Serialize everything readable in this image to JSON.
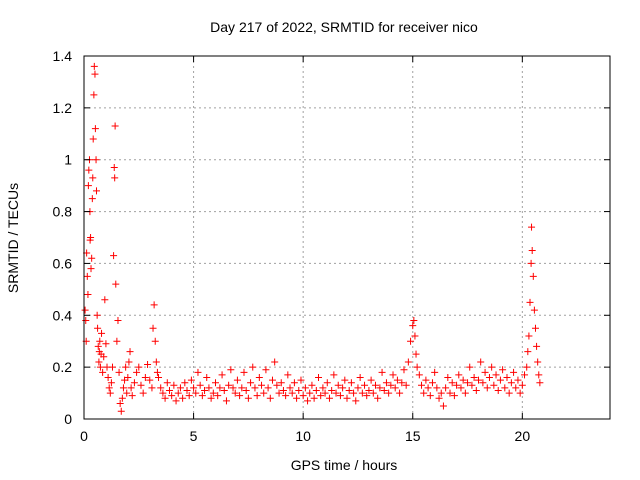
{
  "chart_data": {
    "type": "scatter",
    "title": "Day 217 of 2022, SRMTID for receiver nico",
    "xlabel": "GPS time / hours",
    "ylabel": "SRMTID / TECUs",
    "xlim": [
      0,
      24
    ],
    "ylim": [
      0,
      1.4
    ],
    "xticks": [
      0,
      5,
      10,
      15,
      20
    ],
    "yticks": [
      0,
      0.2,
      0.4,
      0.6,
      0.8,
      1,
      1.2,
      1.4
    ],
    "xtick_labels": [
      "0",
      "5",
      "10",
      "15",
      "20"
    ],
    "ytick_labels": [
      "0",
      "0.2",
      "0.4",
      "0.6",
      "0.8",
      "1",
      "1.2",
      "1.4"
    ],
    "grid": true,
    "marker": "+",
    "color": "#ff0000",
    "series": [
      {
        "name": "SRMTID",
        "points": [
          [
            0.05,
            0.42
          ],
          [
            0.08,
            0.38
          ],
          [
            0.1,
            0.3
          ],
          [
            0.12,
            0.64
          ],
          [
            0.15,
            0.55
          ],
          [
            0.18,
            0.48
          ],
          [
            0.2,
            0.9
          ],
          [
            0.22,
            0.96
          ],
          [
            0.25,
            1.0
          ],
          [
            0.27,
            0.8
          ],
          [
            0.28,
            0.69
          ],
          [
            0.3,
            0.7
          ],
          [
            0.32,
            0.58
          ],
          [
            0.35,
            0.62
          ],
          [
            0.38,
            0.85
          ],
          [
            0.4,
            0.93
          ],
          [
            0.42,
            1.08
          ],
          [
            0.45,
            1.25
          ],
          [
            0.47,
            1.36
          ],
          [
            0.5,
            1.33
          ],
          [
            0.52,
            1.12
          ],
          [
            0.55,
            1.0
          ],
          [
            0.57,
            0.88
          ],
          [
            0.6,
            0.4
          ],
          [
            0.62,
            0.35
          ],
          [
            0.65,
            0.28
          ],
          [
            0.68,
            0.22
          ],
          [
            0.7,
            0.26
          ],
          [
            0.72,
            0.3
          ],
          [
            0.75,
            0.2
          ],
          [
            0.78,
            0.25
          ],
          [
            0.8,
            0.33
          ],
          [
            0.85,
            0.18
          ],
          [
            0.9,
            0.24
          ],
          [
            0.95,
            0.46
          ],
          [
            1.0,
            0.29
          ],
          [
            1.05,
            0.2
          ],
          [
            1.1,
            0.16
          ],
          [
            1.15,
            0.12
          ],
          [
            1.2,
            0.1
          ],
          [
            1.25,
            0.14
          ],
          [
            1.3,
            0.2
          ],
          [
            1.35,
            0.63
          ],
          [
            1.38,
            0.97
          ],
          [
            1.4,
            0.93
          ],
          [
            1.42,
            1.13
          ],
          [
            1.45,
            0.52
          ],
          [
            1.5,
            0.3
          ],
          [
            1.55,
            0.38
          ],
          [
            1.6,
            0.18
          ],
          [
            1.65,
            0.06
          ],
          [
            1.7,
            0.03
          ],
          [
            1.75,
            0.08
          ],
          [
            1.8,
            0.12
          ],
          [
            1.85,
            0.15
          ],
          [
            1.9,
            0.2
          ],
          [
            1.95,
            0.1
          ],
          [
            2.0,
            0.16
          ],
          [
            2.05,
            0.22
          ],
          [
            2.1,
            0.26
          ],
          [
            2.15,
            0.12
          ],
          [
            2.2,
            0.09
          ],
          [
            2.3,
            0.14
          ],
          [
            2.4,
            0.18
          ],
          [
            2.5,
            0.2
          ],
          [
            2.6,
            0.13
          ],
          [
            2.7,
            0.1
          ],
          [
            2.8,
            0.16
          ],
          [
            2.9,
            0.21
          ],
          [
            3.0,
            0.15
          ],
          [
            3.1,
            0.12
          ],
          [
            3.15,
            0.35
          ],
          [
            3.2,
            0.44
          ],
          [
            3.25,
            0.3
          ],
          [
            3.3,
            0.22
          ],
          [
            3.35,
            0.18
          ],
          [
            3.4,
            0.16
          ],
          [
            3.5,
            0.12
          ],
          [
            3.6,
            0.1
          ],
          [
            3.7,
            0.08
          ],
          [
            3.8,
            0.14
          ],
          [
            3.9,
            0.11
          ],
          [
            4.0,
            0.09
          ],
          [
            4.1,
            0.13
          ],
          [
            4.2,
            0.07
          ],
          [
            4.3,
            0.1
          ],
          [
            4.4,
            0.12
          ],
          [
            4.5,
            0.08
          ],
          [
            4.6,
            0.14
          ],
          [
            4.7,
            0.11
          ],
          [
            4.8,
            0.09
          ],
          [
            4.9,
            0.15
          ],
          [
            5.0,
            0.12
          ],
          [
            5.1,
            0.1
          ],
          [
            5.2,
            0.18
          ],
          [
            5.3,
            0.13
          ],
          [
            5.4,
            0.09
          ],
          [
            5.5,
            0.11
          ],
          [
            5.6,
            0.16
          ],
          [
            5.7,
            0.12
          ],
          [
            5.8,
            0.08
          ],
          [
            5.9,
            0.1
          ],
          [
            6.0,
            0.14
          ],
          [
            6.1,
            0.09
          ],
          [
            6.2,
            0.12
          ],
          [
            6.3,
            0.17
          ],
          [
            6.4,
            0.11
          ],
          [
            6.5,
            0.07
          ],
          [
            6.6,
            0.13
          ],
          [
            6.7,
            0.19
          ],
          [
            6.8,
            0.12
          ],
          [
            6.9,
            0.1
          ],
          [
            7.0,
            0.15
          ],
          [
            7.1,
            0.09
          ],
          [
            7.2,
            0.12
          ],
          [
            7.3,
            0.18
          ],
          [
            7.4,
            0.11
          ],
          [
            7.5,
            0.08
          ],
          [
            7.6,
            0.14
          ],
          [
            7.7,
            0.2
          ],
          [
            7.8,
            0.12
          ],
          [
            7.9,
            0.09
          ],
          [
            8.0,
            0.16
          ],
          [
            8.1,
            0.13
          ],
          [
            8.2,
            0.1
          ],
          [
            8.3,
            0.19
          ],
          [
            8.4,
            0.12
          ],
          [
            8.5,
            0.08
          ],
          [
            8.6,
            0.15
          ],
          [
            8.7,
            0.22
          ],
          [
            8.8,
            0.13
          ],
          [
            8.9,
            0.1
          ],
          [
            9.0,
            0.14
          ],
          [
            9.1,
            0.11
          ],
          [
            9.2,
            0.09
          ],
          [
            9.3,
            0.17
          ],
          [
            9.4,
            0.12
          ],
          [
            9.5,
            0.1
          ],
          [
            9.6,
            0.14
          ],
          [
            9.7,
            0.08
          ],
          [
            9.8,
            0.11
          ],
          [
            9.9,
            0.15
          ],
          [
            10.0,
            0.09
          ],
          [
            10.1,
            0.12
          ],
          [
            10.2,
            0.07
          ],
          [
            10.3,
            0.1
          ],
          [
            10.4,
            0.13
          ],
          [
            10.5,
            0.08
          ],
          [
            10.6,
            0.11
          ],
          [
            10.7,
            0.16
          ],
          [
            10.8,
            0.09
          ],
          [
            10.9,
            0.12
          ],
          [
            11.0,
            0.1
          ],
          [
            11.1,
            0.14
          ],
          [
            11.2,
            0.08
          ],
          [
            11.3,
            0.11
          ],
          [
            11.4,
            0.17
          ],
          [
            11.5,
            0.1
          ],
          [
            11.6,
            0.13
          ],
          [
            11.7,
            0.09
          ],
          [
            11.8,
            0.12
          ],
          [
            11.9,
            0.15
          ],
          [
            12.0,
            0.08
          ],
          [
            12.1,
            0.11
          ],
          [
            12.2,
            0.14
          ],
          [
            12.3,
            0.1
          ],
          [
            12.4,
            0.07
          ],
          [
            12.5,
            0.12
          ],
          [
            12.6,
            0.16
          ],
          [
            12.7,
            0.1
          ],
          [
            12.8,
            0.13
          ],
          [
            12.9,
            0.09
          ],
          [
            13.0,
            0.11
          ],
          [
            13.1,
            0.15
          ],
          [
            13.2,
            0.1
          ],
          [
            13.3,
            0.13
          ],
          [
            13.4,
            0.08
          ],
          [
            13.5,
            0.12
          ],
          [
            13.6,
            0.18
          ],
          [
            13.7,
            0.11
          ],
          [
            13.8,
            0.14
          ],
          [
            13.9,
            0.1
          ],
          [
            14.0,
            0.13
          ],
          [
            14.1,
            0.17
          ],
          [
            14.2,
            0.12
          ],
          [
            14.3,
            0.15
          ],
          [
            14.4,
            0.1
          ],
          [
            14.5,
            0.14
          ],
          [
            14.6,
            0.19
          ],
          [
            14.7,
            0.13
          ],
          [
            14.8,
            0.22
          ],
          [
            14.9,
            0.3
          ],
          [
            15.0,
            0.36
          ],
          [
            15.05,
            0.38
          ],
          [
            15.1,
            0.32
          ],
          [
            15.15,
            0.25
          ],
          [
            15.2,
            0.2
          ],
          [
            15.3,
            0.17
          ],
          [
            15.4,
            0.13
          ],
          [
            15.5,
            0.1
          ],
          [
            15.6,
            0.15
          ],
          [
            15.7,
            0.12
          ],
          [
            15.8,
            0.09
          ],
          [
            15.9,
            0.14
          ],
          [
            16.0,
            0.18
          ],
          [
            16.1,
            0.12
          ],
          [
            16.2,
            0.08
          ],
          [
            16.3,
            0.1
          ],
          [
            16.4,
            0.05
          ],
          [
            16.5,
            0.12
          ],
          [
            16.6,
            0.16
          ],
          [
            16.7,
            0.1
          ],
          [
            16.8,
            0.14
          ],
          [
            16.9,
            0.09
          ],
          [
            17.0,
            0.13
          ],
          [
            17.1,
            0.17
          ],
          [
            17.2,
            0.12
          ],
          [
            17.3,
            0.15
          ],
          [
            17.4,
            0.1
          ],
          [
            17.5,
            0.14
          ],
          [
            17.6,
            0.2
          ],
          [
            17.7,
            0.13
          ],
          [
            17.8,
            0.16
          ],
          [
            17.9,
            0.11
          ],
          [
            18.0,
            0.15
          ],
          [
            18.1,
            0.22
          ],
          [
            18.2,
            0.14
          ],
          [
            18.3,
            0.18
          ],
          [
            18.4,
            0.12
          ],
          [
            18.5,
            0.16
          ],
          [
            18.6,
            0.2
          ],
          [
            18.7,
            0.13
          ],
          [
            18.8,
            0.17
          ],
          [
            18.9,
            0.11
          ],
          [
            19.0,
            0.15
          ],
          [
            19.1,
            0.19
          ],
          [
            19.2,
            0.12
          ],
          [
            19.3,
            0.16
          ],
          [
            19.4,
            0.1
          ],
          [
            19.5,
            0.14
          ],
          [
            19.6,
            0.18
          ],
          [
            19.7,
            0.12
          ],
          [
            19.8,
            0.15
          ],
          [
            19.9,
            0.1
          ],
          [
            20.0,
            0.13
          ],
          [
            20.1,
            0.17
          ],
          [
            20.2,
            0.2
          ],
          [
            20.25,
            0.26
          ],
          [
            20.3,
            0.32
          ],
          [
            20.35,
            0.45
          ],
          [
            20.4,
            0.6
          ],
          [
            20.42,
            0.74
          ],
          [
            20.45,
            0.65
          ],
          [
            20.5,
            0.55
          ],
          [
            20.55,
            0.42
          ],
          [
            20.6,
            0.35
          ],
          [
            20.65,
            0.28
          ],
          [
            20.7,
            0.22
          ],
          [
            20.75,
            0.17
          ],
          [
            20.8,
            0.14
          ]
        ]
      }
    ]
  }
}
